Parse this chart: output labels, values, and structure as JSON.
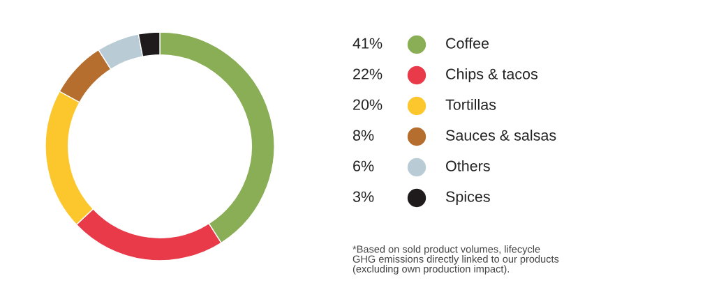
{
  "chart_data": {
    "type": "donut",
    "categories": [
      "Coffee",
      "Chips & tacos",
      "Tortillas",
      "Sauces & salsas",
      "Others",
      "Spices"
    ],
    "values": [
      41,
      22,
      20,
      8,
      6,
      3
    ],
    "colors": [
      "#8aae56",
      "#e93a4a",
      "#fcc62d",
      "#b56e2e",
      "#b9ccd6",
      "#1f1b1d"
    ],
    "value_labels": [
      "41%",
      "22%",
      "20%",
      "8%",
      "6%",
      "3%"
    ],
    "legend": "right",
    "annotations": [
      "*Based on sold product volumes, lifecycle\nGHG emissions directly linked to our products\n(excluding own production impact)."
    ]
  }
}
